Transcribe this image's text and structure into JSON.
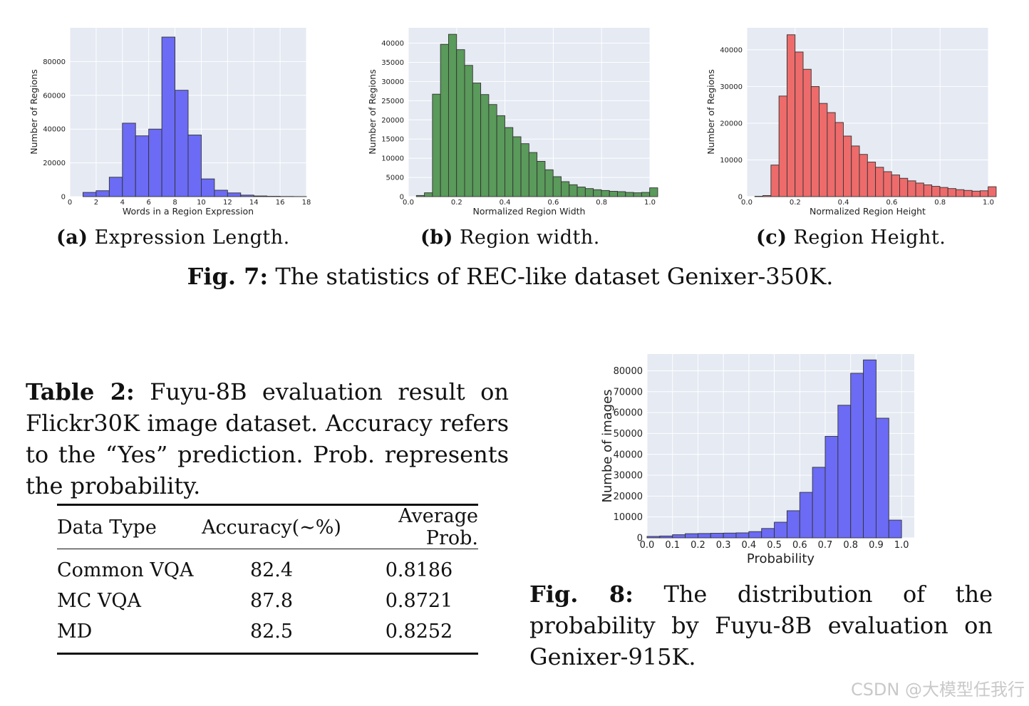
{
  "figure7": {
    "subcaptions": [
      {
        "tag": "(a)",
        "text": "Expression Length."
      },
      {
        "tag": "(b)",
        "text": "Region width."
      },
      {
        "tag": "(c)",
        "text": "Region Height."
      }
    ],
    "caption_label": "Fig. 7:",
    "caption_text": "The statistics of REC-like dataset Genixer-350K."
  },
  "table2": {
    "caption_label": "Table 2:",
    "caption_text": "Fuyu-8B evaluation result on Flickr30K image dataset. Accuracy refers to the “Yes” prediction. Prob. represents the probability.",
    "headers": [
      "Data Type",
      "Accuracy(∼%)",
      "Average Prob."
    ],
    "rows": [
      [
        "Common VQA",
        "82.4",
        "0.8186"
      ],
      [
        "MC VQA",
        "87.8",
        "0.8721"
      ],
      [
        "MD",
        "82.5",
        "0.8252"
      ]
    ]
  },
  "figure8": {
    "caption_label": "Fig. 8:",
    "caption_text": "The distribution of the probability by Fuyu-8B evaluation on Genixer-915K."
  },
  "watermark": "CSDN @大模型任我行",
  "chart_data": [
    {
      "id": "fig7a",
      "type": "bar",
      "xlabel": "Words in a Region Expression",
      "ylabel": "Number of Regions",
      "xlim": [
        0,
        18
      ],
      "ylim": [
        0,
        100000
      ],
      "xticks": [
        0,
        2,
        4,
        6,
        8,
        10,
        12,
        14,
        16,
        18
      ],
      "yticks": [
        0,
        20000,
        40000,
        60000,
        80000
      ],
      "bin_edges": [
        1,
        2,
        3,
        4,
        5,
        6,
        7,
        8,
        9,
        10,
        11,
        12,
        13,
        14,
        15,
        16,
        17,
        18
      ],
      "values": [
        2500,
        3500,
        11500,
        43500,
        36000,
        40000,
        94500,
        63000,
        36500,
        10500,
        3800,
        2200,
        900,
        400,
        200,
        100,
        50
      ],
      "color": "#6b6bf5",
      "background": "#e5eaf3",
      "grid": true
    },
    {
      "id": "fig7b",
      "type": "bar",
      "xlabel": "Normalized Region Width",
      "ylabel": "Number of Regions",
      "xlim": [
        0.0,
        1.0
      ],
      "ylim": [
        0,
        44000
      ],
      "xticks": [
        0.0,
        0.2,
        0.4,
        0.6,
        0.8,
        1.0
      ],
      "yticks": [
        0,
        5000,
        10000,
        15000,
        20000,
        25000,
        30000,
        35000,
        40000
      ],
      "bin_start": 0.0,
      "bin_width": 0.0333,
      "values": [
        0,
        300,
        1000,
        26700,
        39700,
        42300,
        38300,
        34200,
        29600,
        26600,
        24000,
        21100,
        18000,
        15600,
        13800,
        11500,
        9200,
        7000,
        5200,
        3900,
        3100,
        2500,
        2100,
        1800,
        1600,
        1400,
        1300,
        1100,
        1000,
        1100,
        2300
      ],
      "color": "#5a9a5a",
      "background": "#e5eaf3",
      "grid": true
    },
    {
      "id": "fig7c",
      "type": "bar",
      "xlabel": "Normalized Region Height",
      "ylabel": "Number of Regions",
      "xlim": [
        0.0,
        1.0
      ],
      "ylim": [
        0,
        46000
      ],
      "xticks": [
        0.0,
        0.2,
        0.4,
        0.6,
        0.8,
        1.0
      ],
      "yticks": [
        0,
        10000,
        20000,
        30000,
        40000
      ],
      "bin_start": 0.0,
      "bin_width": 0.0333,
      "values": [
        0,
        100,
        300,
        8600,
        27400,
        44100,
        39400,
        34700,
        30000,
        25400,
        22900,
        20200,
        16500,
        13800,
        11500,
        9400,
        8000,
        6800,
        5900,
        5000,
        4300,
        3700,
        3200,
        2800,
        2500,
        2200,
        1900,
        1700,
        1500,
        1600,
        2700
      ],
      "color": "#ee6b6b",
      "background": "#e5eaf3",
      "grid": true
    },
    {
      "id": "fig8",
      "type": "bar",
      "xlabel": "Probability",
      "ylabel": "Numbe of images",
      "xlim": [
        0.0,
        1.05
      ],
      "ylim": [
        0,
        88000
      ],
      "xticks": [
        0.0,
        0.1,
        0.2,
        0.3,
        0.4,
        0.5,
        0.6,
        0.7,
        0.8,
        0.9,
        1.0
      ],
      "yticks": [
        0,
        10000,
        20000,
        30000,
        40000,
        50000,
        60000,
        70000,
        80000
      ],
      "bin_start": 0.0,
      "bin_width": 0.05,
      "values": [
        700,
        900,
        1500,
        2000,
        2100,
        2200,
        2300,
        2400,
        3000,
        4500,
        7500,
        13000,
        21800,
        33800,
        48600,
        63500,
        78800,
        85200,
        57300,
        8500
      ],
      "color": "#6b6bf5",
      "background": "#e5eaf3",
      "grid": true
    }
  ]
}
